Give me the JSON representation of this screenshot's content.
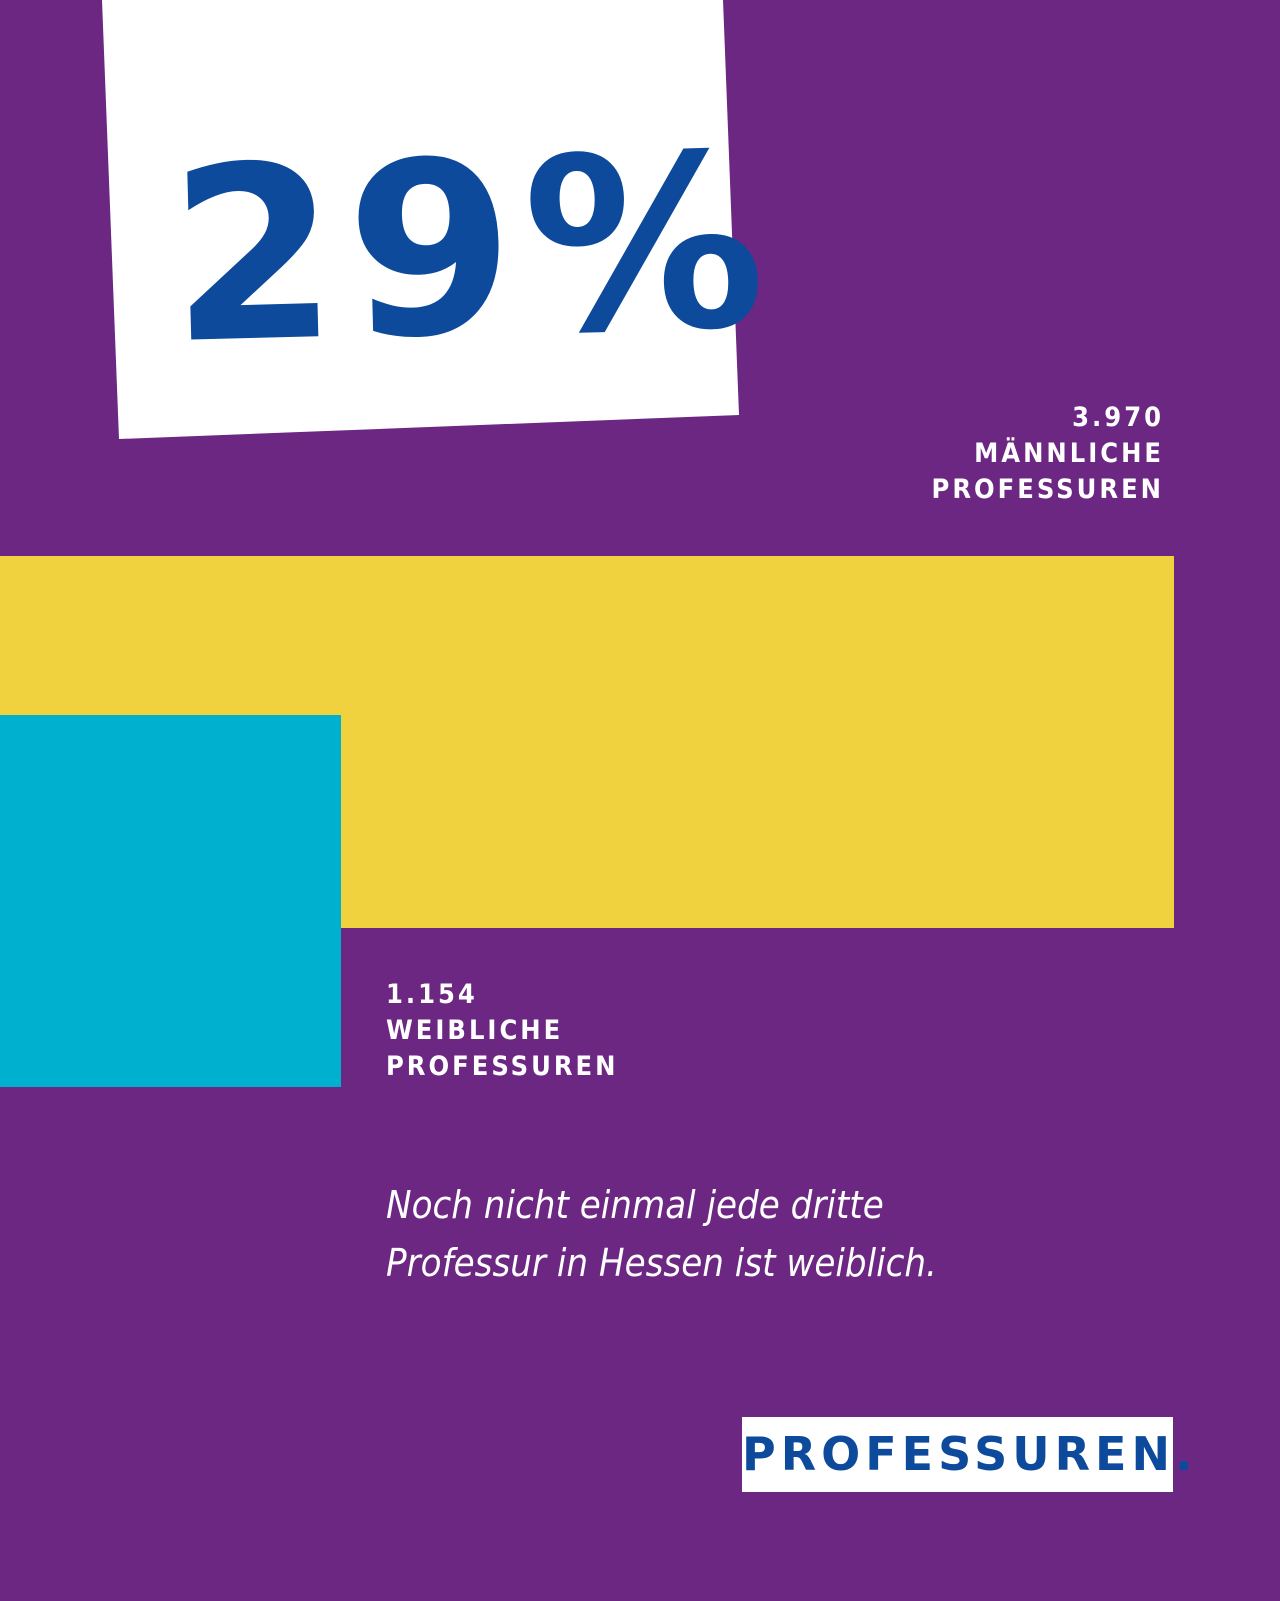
{
  "chart_data": {
    "type": "bar",
    "headline": "29%",
    "categories": [
      "MÄNNLICHE PROFESSUREN",
      "WEIBLICHE PROFESSUREN"
    ],
    "values": [
      3970,
      1154
    ],
    "value_labels": [
      "3.970",
      "1.154"
    ],
    "colors": [
      "#f0d23f",
      "#00b0cf"
    ],
    "annotation": "Noch nicht einmal jede dritte Professur in Hessen ist weiblich.",
    "footer": "PROFESSUREN."
  }
}
